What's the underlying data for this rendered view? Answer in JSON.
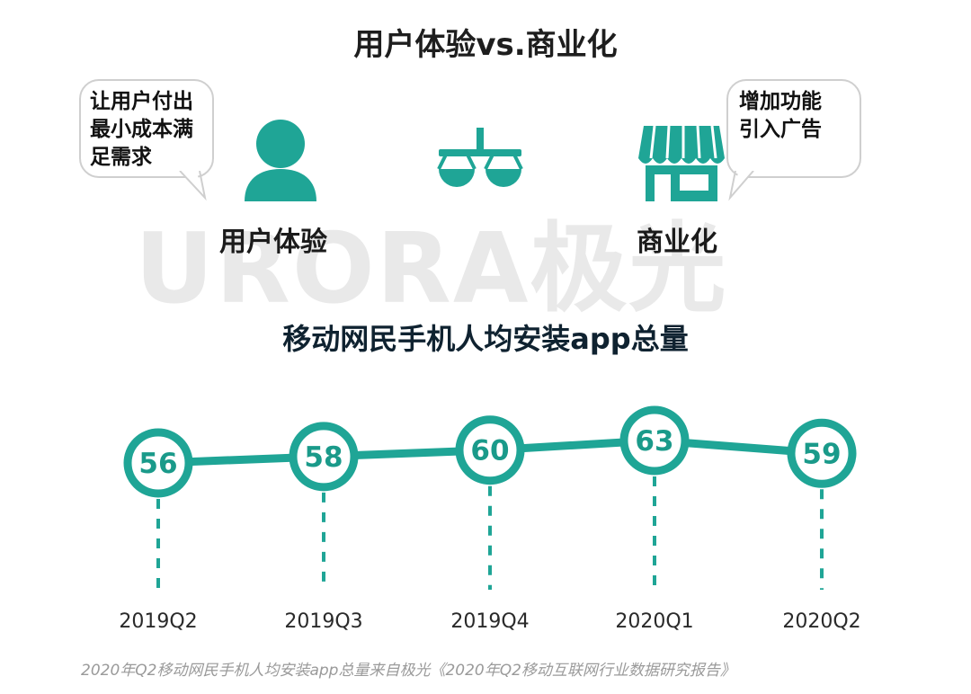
{
  "header": {
    "title": "用户体验vs.商业化"
  },
  "bubbles": {
    "left": {
      "lines": [
        "让用户付出",
        "最小成本满",
        "足需求"
      ]
    },
    "right": {
      "lines": [
        "增加功能",
        "引入广告"
      ]
    }
  },
  "labels": {
    "user": "用户体验",
    "business": "商业化"
  },
  "icons": {
    "user": "user-icon",
    "balance": "balance-scale-icon",
    "store": "store-icon"
  },
  "watermark": {
    "text": "URORA极光"
  },
  "colors": {
    "accent": "#1fa596",
    "text": "#222222",
    "muted": "#9a9a9a"
  },
  "chart_data": {
    "type": "line",
    "title": "移动网民手机人均安装app总量",
    "categories": [
      "2019Q2",
      "2019Q3",
      "2019Q4",
      "2020Q1",
      "2020Q2"
    ],
    "values": [
      56,
      58,
      60,
      63,
      59
    ],
    "ylim": [
      50,
      70
    ],
    "grid": false,
    "legend": "none"
  },
  "footnote": "2020年Q2移动网民手机人均安装app总量来自极光《2020年Q2移动互联网行业数据研究报告》"
}
